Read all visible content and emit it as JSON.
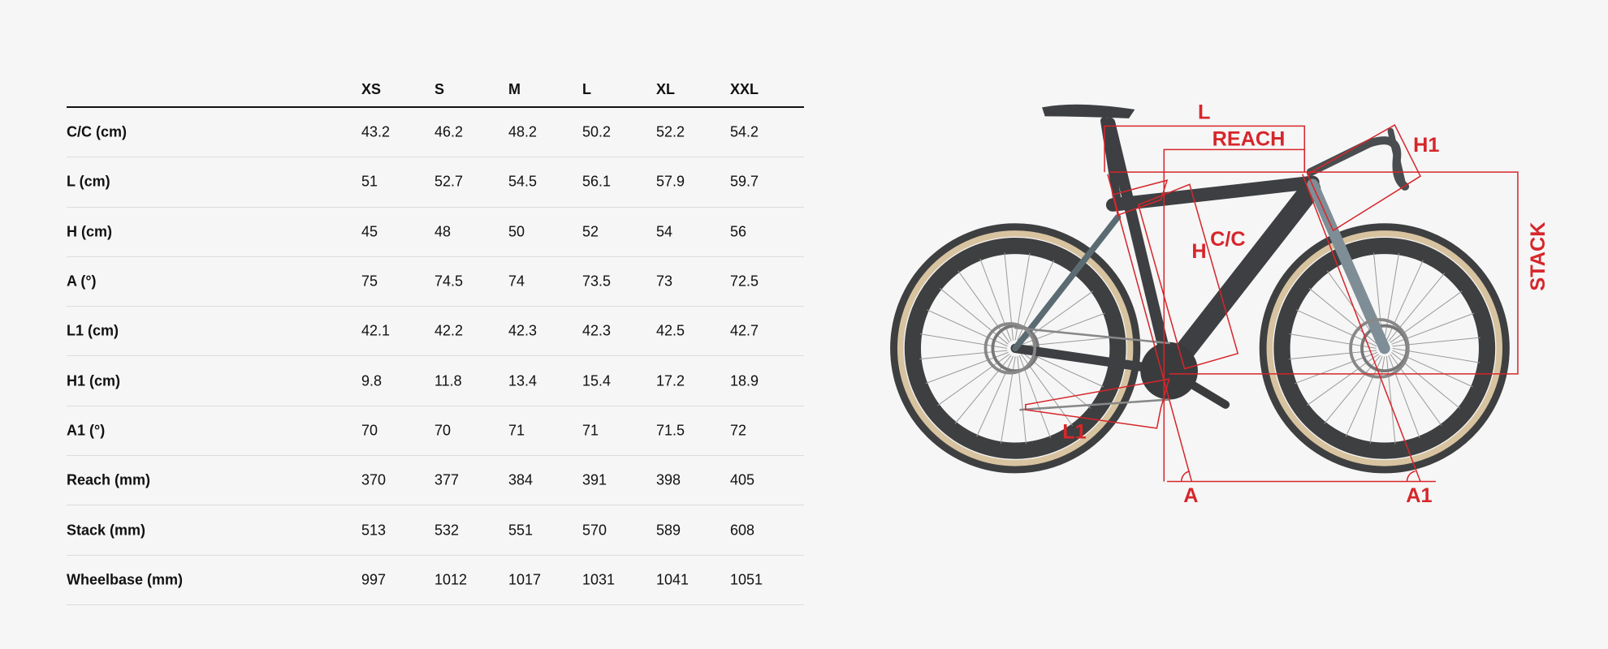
{
  "table": {
    "columns": [
      "XS",
      "S",
      "M",
      "L",
      "XL",
      "XXL"
    ],
    "rows": [
      {
        "label": "C/C (cm)",
        "values": [
          "43.2",
          "46.2",
          "48.2",
          "50.2",
          "52.2",
          "54.2"
        ]
      },
      {
        "label": "L (cm)",
        "values": [
          "51",
          "52.7",
          "54.5",
          "56.1",
          "57.9",
          "59.7"
        ]
      },
      {
        "label": "H (cm)",
        "values": [
          "45",
          "48",
          "50",
          "52",
          "54",
          "56"
        ]
      },
      {
        "label": "A (°)",
        "values": [
          "75",
          "74.5",
          "74",
          "73.5",
          "73",
          "72.5"
        ]
      },
      {
        "label": "L1 (cm)",
        "values": [
          "42.1",
          "42.2",
          "42.3",
          "42.3",
          "42.5",
          "42.7"
        ]
      },
      {
        "label": "H1 (cm)",
        "values": [
          "9.8",
          "11.8",
          "13.4",
          "15.4",
          "17.2",
          "18.9"
        ]
      },
      {
        "label": "A1 (°)",
        "values": [
          "70",
          "70",
          "71",
          "71",
          "71.5",
          "72"
        ]
      },
      {
        "label": "Reach (mm)",
        "values": [
          "370",
          "377",
          "384",
          "391",
          "398",
          "405"
        ]
      },
      {
        "label": "Stack (mm)",
        "values": [
          "513",
          "532",
          "551",
          "570",
          "589",
          "608"
        ]
      },
      {
        "label": "Wheelbase (mm)",
        "values": [
          "997",
          "1012",
          "1017",
          "1031",
          "1041",
          "1051"
        ]
      }
    ]
  },
  "diagram": {
    "labels": {
      "L": "L",
      "reach": "REACH",
      "h1": "H1",
      "cc": "C/C",
      "h": "H",
      "stack": "STACK",
      "l1": "L1",
      "a": "A",
      "a1": "A1"
    },
    "accent_color": "#d6262b",
    "tire_color": "#d8c3a0",
    "frame_color": "#4a4d50"
  }
}
